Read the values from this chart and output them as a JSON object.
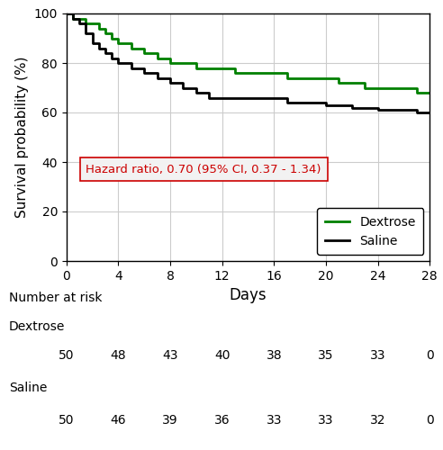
{
  "ylabel": "Survival probability (%)",
  "xlabel": "Days",
  "xlim": [
    0,
    28
  ],
  "ylim": [
    0,
    100
  ],
  "xticks": [
    0,
    4,
    8,
    12,
    16,
    20,
    24,
    28
  ],
  "yticks": [
    0,
    20,
    40,
    60,
    80,
    100
  ],
  "hazard_text": "Hazard ratio, 0.70 (95% CI, 0.37 - 1.34)",
  "hazard_color": "#cc0000",
  "hazard_box_facecolor": "#f2f2f2",
  "hazard_box_edgecolor": "#cc0000",
  "dextrose_color": "#008000",
  "saline_color": "#000000",
  "grid_color": "#cccccc",
  "dextrose_x": [
    0,
    0.5,
    0.5,
    1,
    1,
    1.5,
    1.5,
    2,
    2,
    2.5,
    2.5,
    3,
    3,
    3.5,
    3.5,
    4,
    4,
    5,
    5,
    6,
    6,
    7,
    7,
    8,
    8,
    9,
    9,
    10,
    10,
    11,
    11,
    12,
    12,
    13,
    13,
    14,
    14,
    15,
    15,
    16,
    16,
    17,
    17,
    18,
    18,
    19,
    19,
    20,
    20,
    21,
    21,
    22,
    22,
    23,
    23,
    24,
    24,
    25,
    25,
    26,
    26,
    27,
    27,
    28
  ],
  "dextrose_y": [
    100,
    100,
    98,
    98,
    98,
    98,
    96,
    96,
    96,
    96,
    94,
    94,
    92,
    92,
    90,
    90,
    88,
    88,
    86,
    86,
    84,
    84,
    82,
    82,
    80,
    80,
    80,
    80,
    78,
    78,
    78,
    78,
    78,
    78,
    76,
    76,
    76,
    76,
    76,
    76,
    76,
    76,
    74,
    74,
    74,
    74,
    74,
    74,
    74,
    74,
    72,
    72,
    72,
    72,
    70,
    70,
    70,
    70,
    70,
    70,
    70,
    70,
    68,
    68
  ],
  "saline_x": [
    0,
    0.5,
    0.5,
    1,
    1,
    1.5,
    1.5,
    2,
    2,
    2.5,
    2.5,
    3,
    3,
    3.5,
    3.5,
    4,
    4,
    5,
    5,
    6,
    6,
    7,
    7,
    8,
    8,
    9,
    9,
    10,
    10,
    11,
    11,
    12,
    12,
    13,
    13,
    14,
    14,
    15,
    15,
    16,
    16,
    17,
    17,
    18,
    18,
    19,
    19,
    20,
    20,
    21,
    21,
    22,
    22,
    23,
    23,
    24,
    24,
    25,
    25,
    26,
    26,
    27,
    27,
    28
  ],
  "saline_y": [
    100,
    100,
    98,
    98,
    96,
    96,
    92,
    92,
    88,
    88,
    86,
    86,
    84,
    84,
    82,
    82,
    80,
    80,
    78,
    78,
    76,
    76,
    74,
    74,
    72,
    72,
    70,
    70,
    68,
    68,
    66,
    66,
    66,
    66,
    66,
    66,
    66,
    66,
    66,
    66,
    66,
    66,
    64,
    64,
    64,
    64,
    64,
    64,
    63,
    63,
    63,
    63,
    62,
    62,
    62,
    62,
    61,
    61,
    61,
    61,
    61,
    61,
    60,
    60
  ],
  "number_at_risk_label": "Number at risk",
  "dextrose_label": "Dextrose",
  "saline_label": "Saline",
  "dextrose_risk": [
    50,
    48,
    43,
    40,
    38,
    35,
    33,
    0
  ],
  "saline_risk": [
    50,
    46,
    39,
    36,
    33,
    33,
    32,
    0
  ],
  "risk_days": [
    0,
    4,
    8,
    12,
    16,
    20,
    24,
    28
  ]
}
